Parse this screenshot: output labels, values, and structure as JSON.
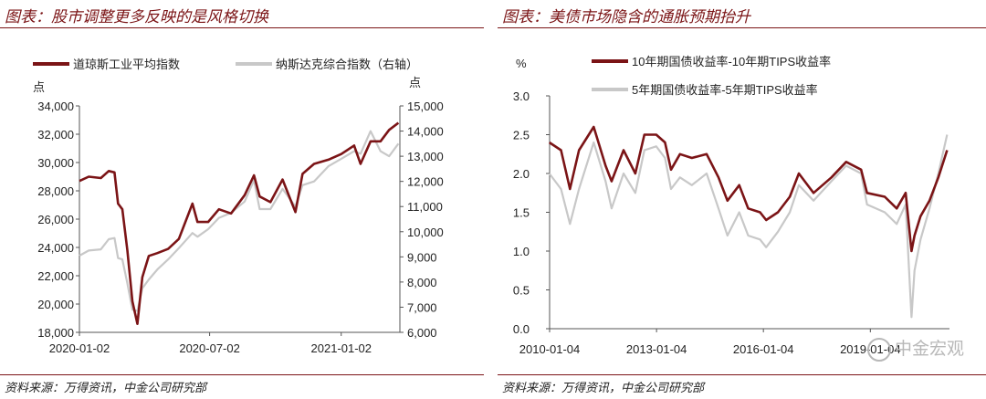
{
  "left": {
    "title": "图表：股市调整更多反映的是风格切换",
    "source": "资料来源：万得资讯，中金公司研究部",
    "left_unit": "点",
    "right_unit": "点"
  },
  "right": {
    "title": "图表：美债市场隐含的通胀预期抬升",
    "source": "资料来源：万得资讯，中金公司研究部",
    "y_unit": "%",
    "watermark": "中金宏观"
  },
  "colors": {
    "dark_red": "#7b1416",
    "gray": "#c8c8c8",
    "title_red": "#7b1416"
  },
  "chart_data": [
    {
      "type": "line",
      "x_tick_labels": [
        "2020-01-02",
        "2020-07-02",
        "2021-01-02"
      ],
      "y_left": {
        "ticks": [
          "18,000",
          "20,000",
          "22,000",
          "24,000",
          "26,000",
          "28,000",
          "30,000",
          "32,000",
          "34,000"
        ],
        "lim": [
          18000,
          34000
        ]
      },
      "y_right": {
        "ticks": [
          "6,000",
          "7,000",
          "8,000",
          "9,000",
          "10,000",
          "11,000",
          "12,000",
          "13,000",
          "14,000",
          "15,000"
        ],
        "lim": [
          6000,
          15000
        ]
      },
      "series": [
        {
          "name": "道琼斯工业平均指数",
          "axis": "left",
          "color": "#7b1416",
          "x": [
            "2020-01-02",
            "2020-01-15",
            "2020-02-01",
            "2020-02-12",
            "2020-02-20",
            "2020-02-25",
            "2020-03-02",
            "2020-03-09",
            "2020-03-16",
            "2020-03-23",
            "2020-03-30",
            "2020-04-08",
            "2020-04-20",
            "2020-05-05",
            "2020-05-20",
            "2020-06-08",
            "2020-06-15",
            "2020-06-30",
            "2020-07-15",
            "2020-08-01",
            "2020-08-20",
            "2020-09-02",
            "2020-09-10",
            "2020-09-25",
            "2020-10-12",
            "2020-10-30",
            "2020-11-09",
            "2020-11-25",
            "2020-12-15",
            "2021-01-02",
            "2021-01-20",
            "2021-01-29",
            "2021-02-12",
            "2021-02-26",
            "2021-03-10",
            "2021-03-23"
          ],
          "y": [
            28700,
            29000,
            28900,
            29400,
            29300,
            27100,
            26700,
            23800,
            20200,
            18600,
            21900,
            23400,
            23600,
            23900,
            24600,
            27100,
            25800,
            25800,
            26700,
            26400,
            27700,
            29100,
            27600,
            27200,
            28800,
            26500,
            29200,
            29900,
            30200,
            30600,
            31200,
            29900,
            31500,
            31500,
            32300,
            32800
          ]
        },
        {
          "name": "纳斯达克综合指数（右轴）",
          "axis": "right",
          "color": "#c8c8c8",
          "x": [
            "2020-01-02",
            "2020-01-15",
            "2020-02-01",
            "2020-02-12",
            "2020-02-20",
            "2020-02-25",
            "2020-03-02",
            "2020-03-09",
            "2020-03-16",
            "2020-03-23",
            "2020-03-30",
            "2020-04-08",
            "2020-04-20",
            "2020-05-05",
            "2020-05-20",
            "2020-06-08",
            "2020-06-15",
            "2020-06-30",
            "2020-07-15",
            "2020-08-01",
            "2020-08-20",
            "2020-09-02",
            "2020-09-10",
            "2020-09-25",
            "2020-10-12",
            "2020-10-30",
            "2020-11-09",
            "2020-11-25",
            "2020-12-15",
            "2021-01-02",
            "2021-01-20",
            "2021-01-29",
            "2021-02-12",
            "2021-02-26",
            "2021-03-10",
            "2021-03-23"
          ],
          "y": [
            9050,
            9250,
            9300,
            9700,
            9750,
            8950,
            8900,
            7950,
            6900,
            6850,
            7750,
            8100,
            8500,
            8900,
            9350,
            9950,
            9800,
            10100,
            10550,
            10750,
            11200,
            12050,
            10900,
            10900,
            11700,
            11000,
            11850,
            12000,
            12600,
            12900,
            13200,
            13100,
            14000,
            13200,
            13000,
            13500
          ]
        }
      ]
    },
    {
      "type": "line",
      "x_tick_labels": [
        "2010-01-04",
        "2013-01-04",
        "2016-01-04",
        "2019-01-04"
      ],
      "y_label": "%",
      "y_ticks": [
        "0.0",
        "0.5",
        "1.0",
        "1.5",
        "2.0",
        "2.5",
        "3.0"
      ],
      "ylim": [
        0,
        3.0
      ],
      "series": [
        {
          "name": "10年期国债收益率-10年期TIPS收益率",
          "color": "#7b1416",
          "x": [
            "2010-01",
            "2010-05",
            "2010-08",
            "2010-11",
            "2011-04",
            "2011-08",
            "2011-10",
            "2012-02",
            "2012-06",
            "2012-09",
            "2013-01",
            "2013-04",
            "2013-06",
            "2013-09",
            "2014-01",
            "2014-06",
            "2014-10",
            "2015-01",
            "2015-05",
            "2015-08",
            "2015-12",
            "2016-02",
            "2016-06",
            "2016-10",
            "2017-01",
            "2017-06",
            "2017-12",
            "2018-05",
            "2018-10",
            "2018-12",
            "2019-06",
            "2019-10",
            "2020-01",
            "2020-03",
            "2020-04",
            "2020-06",
            "2020-09",
            "2020-12",
            "2021-03"
          ],
          "y": [
            2.4,
            2.3,
            1.8,
            2.3,
            2.6,
            2.1,
            1.9,
            2.3,
            2.0,
            2.5,
            2.5,
            2.4,
            2.05,
            2.25,
            2.2,
            2.25,
            1.95,
            1.65,
            1.85,
            1.55,
            1.5,
            1.4,
            1.5,
            1.7,
            2.0,
            1.75,
            1.95,
            2.15,
            2.05,
            1.75,
            1.7,
            1.55,
            1.75,
            1.0,
            1.2,
            1.45,
            1.65,
            1.95,
            2.3
          ]
        },
        {
          "name": "5年期国债收益率-5年期TIPS收益率",
          "color": "#c8c8c8",
          "x": [
            "2010-01",
            "2010-05",
            "2010-08",
            "2010-11",
            "2011-04",
            "2011-08",
            "2011-10",
            "2012-02",
            "2012-06",
            "2012-09",
            "2013-01",
            "2013-04",
            "2013-06",
            "2013-09",
            "2014-01",
            "2014-06",
            "2014-10",
            "2015-01",
            "2015-05",
            "2015-08",
            "2015-12",
            "2016-02",
            "2016-06",
            "2016-10",
            "2017-01",
            "2017-06",
            "2017-12",
            "2018-05",
            "2018-10",
            "2018-12",
            "2019-06",
            "2019-10",
            "2020-01",
            "2020-03",
            "2020-04",
            "2020-06",
            "2020-09",
            "2020-12",
            "2021-03"
          ],
          "y": [
            2.0,
            1.8,
            1.35,
            1.8,
            2.4,
            1.9,
            1.55,
            2.0,
            1.75,
            2.3,
            2.35,
            2.2,
            1.8,
            1.95,
            1.85,
            2.0,
            1.55,
            1.2,
            1.5,
            1.2,
            1.15,
            1.05,
            1.25,
            1.5,
            1.85,
            1.65,
            1.9,
            2.1,
            2.0,
            1.6,
            1.5,
            1.35,
            1.6,
            0.15,
            0.75,
            1.15,
            1.55,
            2.0,
            2.5
          ]
        }
      ]
    }
  ]
}
